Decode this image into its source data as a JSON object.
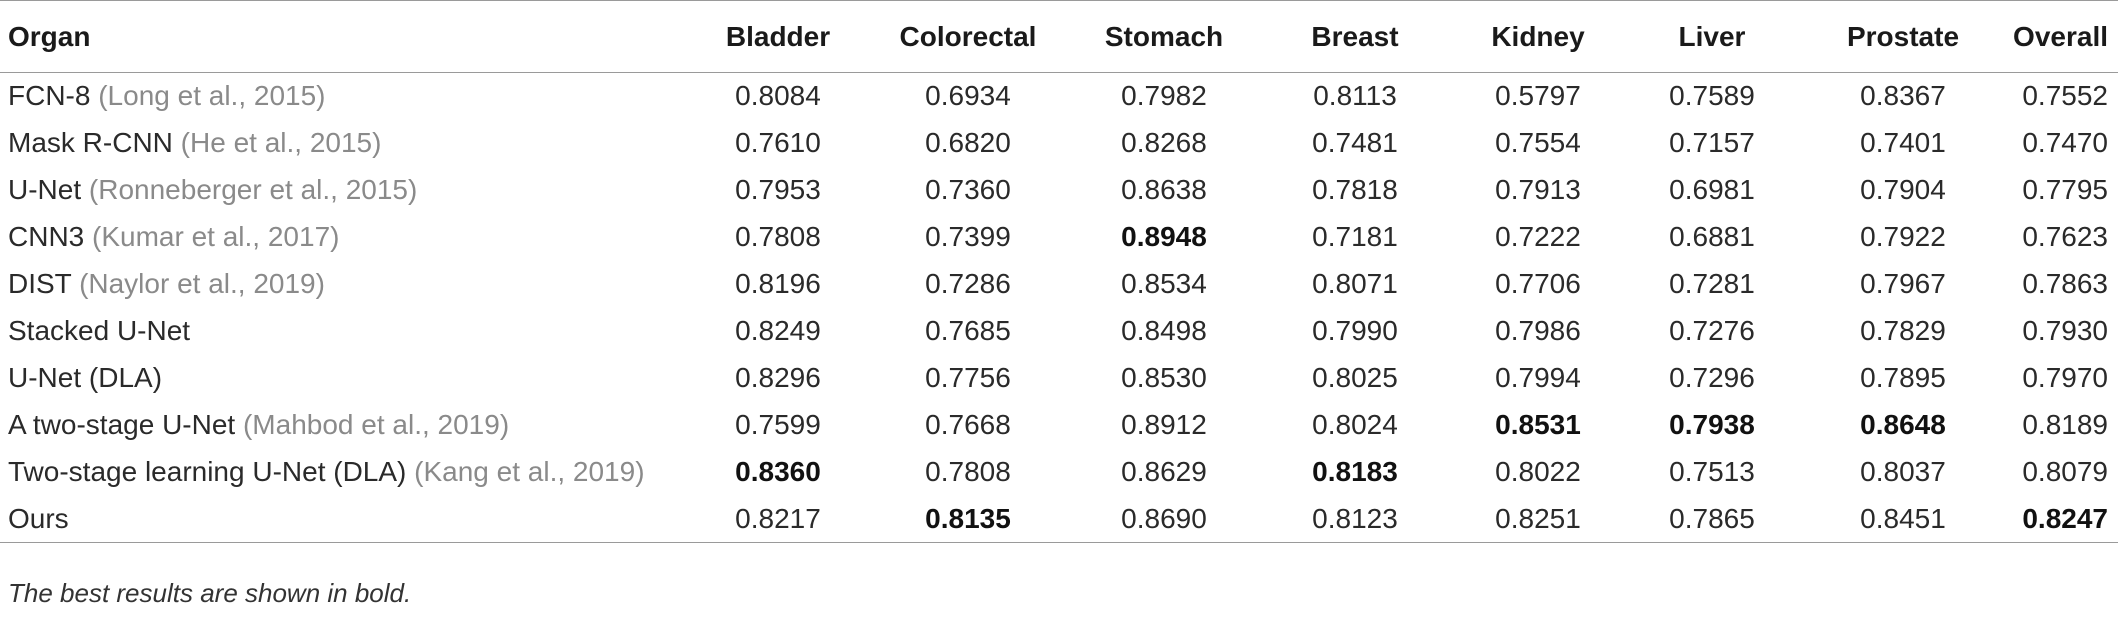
{
  "table": {
    "columns": [
      "Organ",
      "Bladder",
      "Colorectal",
      "Stomach",
      "Breast",
      "Kidney",
      "Liver",
      "Prostate",
      "Overall"
    ],
    "rows": [
      {
        "method": "FCN-8",
        "cite": "(Long et al., 2015)",
        "values": [
          "0.8084",
          "0.6934",
          "0.7982",
          "0.8113",
          "0.5797",
          "0.7589",
          "0.8367",
          "0.7552"
        ],
        "best": []
      },
      {
        "method": "Mask R-CNN",
        "cite": "(He et al., 2015)",
        "values": [
          "0.7610",
          "0.6820",
          "0.8268",
          "0.7481",
          "0.7554",
          "0.7157",
          "0.7401",
          "0.7470"
        ],
        "best": []
      },
      {
        "method": "U-Net",
        "cite": "(Ronneberger et al., 2015)",
        "values": [
          "0.7953",
          "0.7360",
          "0.8638",
          "0.7818",
          "0.7913",
          "0.6981",
          "0.7904",
          "0.7795"
        ],
        "best": []
      },
      {
        "method": "CNN3",
        "cite": "(Kumar et al., 2017)",
        "values": [
          "0.7808",
          "0.7399",
          "0.8948",
          "0.7181",
          "0.7222",
          "0.6881",
          "0.7922",
          "0.7623"
        ],
        "best": [
          2
        ]
      },
      {
        "method": "DIST",
        "cite": "(Naylor et al., 2019)",
        "values": [
          "0.8196",
          "0.7286",
          "0.8534",
          "0.8071",
          "0.7706",
          "0.7281",
          "0.7967",
          "0.7863"
        ],
        "best": []
      },
      {
        "method": "Stacked U-Net",
        "cite": "",
        "values": [
          "0.8249",
          "0.7685",
          "0.8498",
          "0.7990",
          "0.7986",
          "0.7276",
          "0.7829",
          "0.7930"
        ],
        "best": []
      },
      {
        "method": "U-Net (DLA)",
        "cite": "",
        "values": [
          "0.8296",
          "0.7756",
          "0.8530",
          "0.8025",
          "0.7994",
          "0.7296",
          "0.7895",
          "0.7970"
        ],
        "best": []
      },
      {
        "method": "A two-stage U-Net",
        "cite": "(Mahbod et al., 2019)",
        "values": [
          "0.7599",
          "0.7668",
          "0.8912",
          "0.8024",
          "0.8531",
          "0.7938",
          "0.8648",
          "0.8189"
        ],
        "best": [
          4,
          5,
          6
        ]
      },
      {
        "method": "Two-stage learning U-Net (DLA)",
        "cite": "(Kang et al., 2019)",
        "values": [
          "0.8360",
          "0.7808",
          "0.8629",
          "0.8183",
          "0.8022",
          "0.7513",
          "0.8037",
          "0.8079"
        ],
        "best": [
          0,
          3
        ]
      },
      {
        "method": "Ours",
        "cite": "",
        "values": [
          "0.8217",
          "0.8135",
          "0.8690",
          "0.8123",
          "0.8251",
          "0.7865",
          "0.8451",
          "0.8247"
        ],
        "best": [
          1,
          7
        ]
      }
    ]
  },
  "footnote": "The best results are shown in bold."
}
